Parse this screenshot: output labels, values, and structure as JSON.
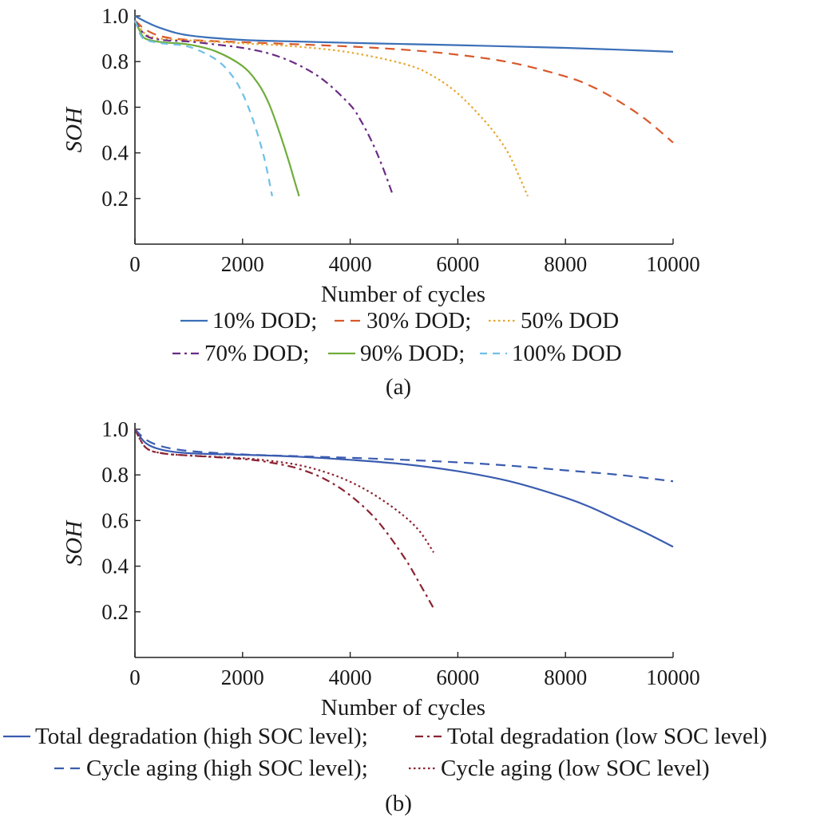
{
  "chart_data": [
    {
      "type": "line",
      "caption": "(a)",
      "xlabel": "Number of cycles",
      "ylabel": "SOH",
      "xlim": [
        0,
        10000
      ],
      "ylim": [
        0,
        1.0
      ],
      "xticks": [
        0,
        2000,
        4000,
        6000,
        8000,
        10000
      ],
      "yticks": [
        0.2,
        0.4,
        0.6,
        0.8,
        1.0
      ],
      "xtick_labels": [
        "0",
        "2000",
        "4000",
        "6000",
        "8000",
        "10000"
      ],
      "ytick_labels": [
        "0.2",
        "0.4",
        "0.6",
        "0.8",
        "1.0"
      ],
      "grid": false,
      "legend_position": "bottom",
      "series": [
        {
          "name": "10% DOD;",
          "color": "#3a6fb7",
          "dash": "solid",
          "x": [
            0,
            200,
            500,
            1000,
            2000,
            3000,
            4000,
            5000,
            6000,
            7000,
            8000,
            9000,
            10000
          ],
          "y": [
            1.0,
            0.975,
            0.945,
            0.915,
            0.895,
            0.888,
            0.882,
            0.877,
            0.872,
            0.866,
            0.86,
            0.852,
            0.843
          ]
        },
        {
          "name": "30% DOD;",
          "color": "#d9582a",
          "dash": "dash",
          "x": [
            0,
            200,
            500,
            1000,
            2000,
            3000,
            4000,
            5000,
            6000,
            7000,
            8000,
            8500,
            9000,
            9500,
            10000
          ],
          "y": [
            0.98,
            0.94,
            0.91,
            0.895,
            0.885,
            0.876,
            0.866,
            0.852,
            0.83,
            0.795,
            0.735,
            0.69,
            0.625,
            0.545,
            0.445
          ]
        },
        {
          "name": "50% DOD",
          "color": "#e6a72c",
          "dash": "dot",
          "x": [
            0,
            200,
            500,
            1000,
            2000,
            3000,
            4000,
            5000,
            5500,
            6000,
            6500,
            6800,
            7000,
            7300
          ],
          "y": [
            0.98,
            0.92,
            0.9,
            0.893,
            0.88,
            0.866,
            0.84,
            0.79,
            0.742,
            0.66,
            0.54,
            0.45,
            0.37,
            0.21
          ]
        },
        {
          "name": "70% DOD;",
          "color": "#6a2b85",
          "dash": "dashdot",
          "x": [
            0,
            200,
            500,
            1000,
            1500,
            2000,
            2500,
            3000,
            3500,
            4000,
            4200,
            4400,
            4600,
            4800
          ],
          "y": [
            0.98,
            0.915,
            0.895,
            0.888,
            0.875,
            0.86,
            0.835,
            0.79,
            0.72,
            0.61,
            0.54,
            0.45,
            0.34,
            0.21
          ]
        },
        {
          "name": "90% DOD;",
          "color": "#6fad3b",
          "dash": "solid",
          "x": [
            0,
            100,
            200,
            500,
            1000,
            1500,
            2000,
            2300,
            2500,
            2700,
            2850,
            2950,
            3050
          ],
          "y": [
            0.98,
            0.93,
            0.9,
            0.885,
            0.875,
            0.845,
            0.78,
            0.7,
            0.61,
            0.48,
            0.37,
            0.29,
            0.21
          ]
        },
        {
          "name": "100% DOD",
          "color": "#6ec0e6",
          "dash": "longdash",
          "x": [
            0,
            100,
            200,
            500,
            1000,
            1500,
            1800,
            2000,
            2200,
            2400,
            2550
          ],
          "y": [
            0.98,
            0.92,
            0.895,
            0.88,
            0.865,
            0.81,
            0.74,
            0.66,
            0.54,
            0.38,
            0.21
          ]
        }
      ]
    },
    {
      "type": "line",
      "caption": "(b)",
      "xlabel": "Number of cycles",
      "ylabel": "SOH",
      "xlim": [
        0,
        10000
      ],
      "ylim": [
        0,
        1.0
      ],
      "xticks": [
        0,
        2000,
        4000,
        6000,
        8000,
        10000
      ],
      "yticks": [
        0.2,
        0.4,
        0.6,
        0.8,
        1.0
      ],
      "xtick_labels": [
        "0",
        "2000",
        "4000",
        "6000",
        "8000",
        "10000"
      ],
      "ytick_labels": [
        "0.2",
        "0.4",
        "0.6",
        "0.8",
        "1.0"
      ],
      "grid": false,
      "legend_position": "bottom",
      "series": [
        {
          "name": "Total degradation (high SOC level);",
          "color": "#3a5cb0",
          "dash": "solid",
          "x": [
            0,
            200,
            500,
            1000,
            2000,
            3000,
            4000,
            5000,
            6000,
            7000,
            8000,
            8500,
            9000,
            9500,
            10000
          ],
          "y": [
            1.0,
            0.94,
            0.91,
            0.895,
            0.888,
            0.88,
            0.866,
            0.847,
            0.816,
            0.77,
            0.7,
            0.655,
            0.6,
            0.545,
            0.485
          ]
        },
        {
          "name": "Total degradation (low SOC level)",
          "color": "#8b2332",
          "dash": "dashdot",
          "x": [
            0,
            200,
            500,
            1000,
            2000,
            2500,
            3000,
            3500,
            4000,
            4500,
            5000,
            5300,
            5550
          ],
          "y": [
            1.0,
            0.92,
            0.895,
            0.885,
            0.87,
            0.855,
            0.83,
            0.785,
            0.71,
            0.6,
            0.44,
            0.32,
            0.215
          ]
        },
        {
          "name": "Cycle aging (high SOC level);",
          "color": "#3a5cb0",
          "dash": "dash",
          "x": [
            0,
            200,
            500,
            1000,
            2000,
            3000,
            4000,
            5000,
            6000,
            7000,
            8000,
            9000,
            10000
          ],
          "y": [
            1.0,
            0.955,
            0.925,
            0.905,
            0.89,
            0.882,
            0.875,
            0.866,
            0.855,
            0.84,
            0.82,
            0.8,
            0.772
          ]
        },
        {
          "name": "Cycle aging (low SOC level)",
          "color": "#8b2332",
          "dash": "dot",
          "x": [
            0,
            200,
            500,
            1000,
            2000,
            2500,
            3000,
            3500,
            4000,
            4500,
            5000,
            5300,
            5550
          ],
          "y": [
            1.0,
            0.92,
            0.895,
            0.885,
            0.873,
            0.862,
            0.845,
            0.815,
            0.77,
            0.705,
            0.62,
            0.55,
            0.46
          ]
        }
      ]
    }
  ]
}
